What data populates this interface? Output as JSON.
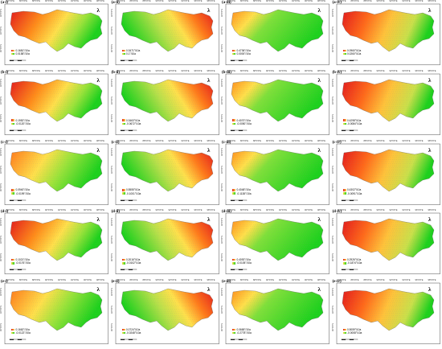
{
  "figure": {
    "columns": 4,
    "rows": 5,
    "lon_ticks": [
      "84°0'0\"E",
      "86°0'0\"E",
      "88°0'0\"E",
      "90°0'0\"E",
      "92°0'0\"E",
      "94°0'0\"E",
      "96°0'0\"E",
      "98°0'0\"E"
    ],
    "lat_ticks": [
      "30°0'0\"N",
      "32°0'0\"N",
      "34°0'0\"N"
    ],
    "north_symbol": "λ",
    "unit_text": " °/10a",
    "colors": {
      "high": "#e31a1c",
      "mid": "#ffe04b",
      "low": "#1dd11d",
      "dot": "#8a8a8a"
    }
  },
  "panels": [
    {
      "label": "(a-i)",
      "max": "0.1681",
      "min": "0.0158",
      "pattern": 0
    },
    {
      "label": "(a-ii)",
      "max": "0.3471",
      "min": "0.1",
      "pattern": 1
    },
    {
      "label": "(a-iii)",
      "max": "0.4736",
      "min": "0.0000",
      "pattern": 2
    },
    {
      "label": "(a-iv)",
      "max": "0.0960",
      "min": "0.0260",
      "pattern": 3
    },
    {
      "label": "(b-i)",
      "max": "0.1952",
      "min": "-0.0120",
      "pattern": 0
    },
    {
      "label": "(b-ii)",
      "max": "0.3463",
      "min": "-0.0672",
      "pattern": 1
    },
    {
      "label": "(b-iii)",
      "max": "0.4070",
      "min": "-0.0050",
      "pattern": 2
    },
    {
      "label": "(b-iv)",
      "max": "0.4298",
      "min": "-0.0084",
      "pattern": 3
    },
    {
      "label": "(c-i)",
      "max": "0.0940",
      "min": "-0.0199",
      "pattern": 4
    },
    {
      "label": "(c-ii)",
      "max": "0.5555",
      "min": "-0.1001",
      "pattern": 1
    },
    {
      "label": "(c-iii)",
      "max": "0.4048",
      "min": "-0.1138",
      "pattern": 2
    },
    {
      "label": "(c-iv)",
      "max": "0.4302",
      "min": "-0.0091",
      "pattern": 3
    },
    {
      "label": "(d-i)",
      "max": "0.1021",
      "min": "-0.0176",
      "pattern": 0
    },
    {
      "label": "(d-ii)",
      "max": "0.2016",
      "min": "-0.0102",
      "pattern": 1
    },
    {
      "label": "(d-iii)",
      "max": "0.4092",
      "min": "-0.0105",
      "pattern": 2
    },
    {
      "label": "(d-iv)",
      "max": "0.2926",
      "min": "-0.1874",
      "pattern": 3
    },
    {
      "label": "(e-i)",
      "max": "0.1662",
      "min": "-0.0122",
      "pattern": 4
    },
    {
      "label": "(e-ii)",
      "max": "0.0724",
      "min": "-0.0248",
      "pattern": 1
    },
    {
      "label": "(e-iii)",
      "max": "0.0665",
      "min": "-0.2778",
      "pattern": 2
    },
    {
      "label": "(e-iv)",
      "max": "0.5059",
      "min": "-0.0008",
      "pattern": 3
    }
  ]
}
